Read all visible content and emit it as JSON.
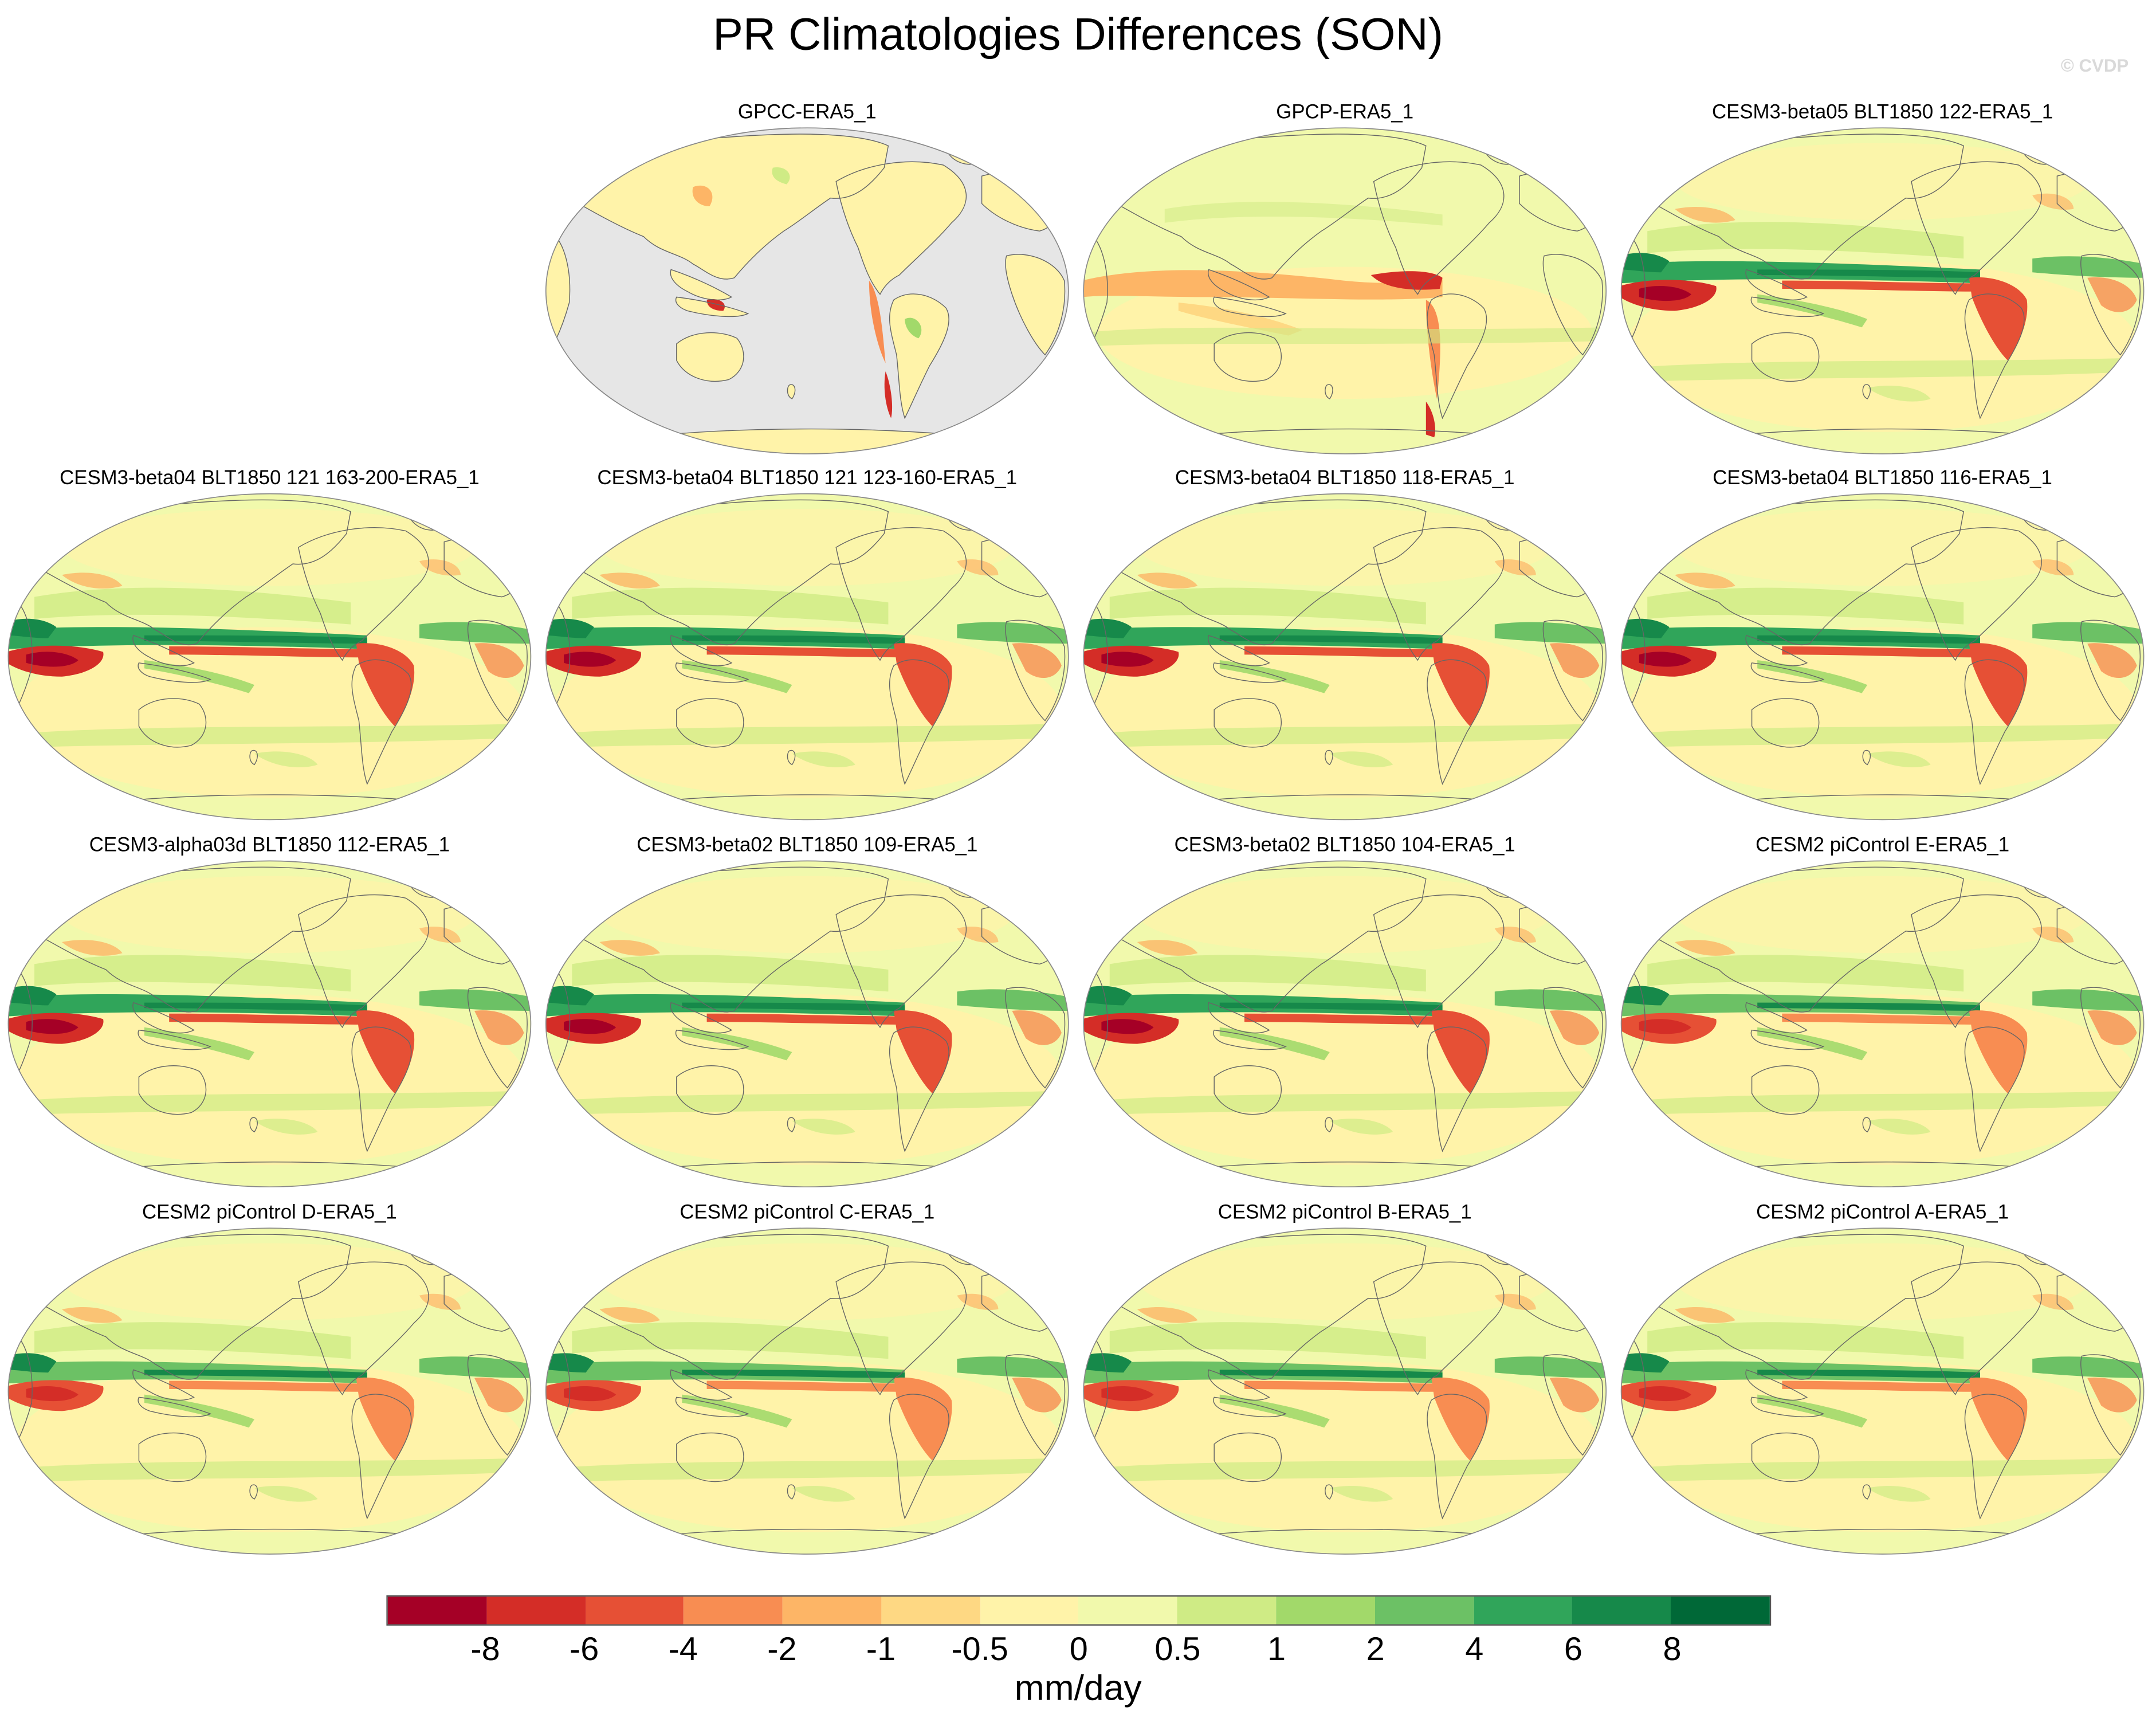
{
  "title": "PR Climatologies Differences (SON)",
  "watermark": "© CVDP",
  "units": "mm/day",
  "colorbar": {
    "ticks": [
      "-8",
      "-6",
      "-4",
      "-2",
      "-1",
      "-0.5",
      "0",
      "0.5",
      "1",
      "2",
      "4",
      "6",
      "8"
    ],
    "colors": [
      "#a50026",
      "#d42d27",
      "#e65035",
      "#f88d52",
      "#fdb566",
      "#fed883",
      "#fff3a9",
      "#f1f9ac",
      "#cfeb85",
      "#a2d96a",
      "#6cc165",
      "#30a55a",
      "#16894a",
      "#006837"
    ]
  },
  "panels": [
    {
      "title": "GPCC-ERA5_1",
      "style": "land-only"
    },
    {
      "title": "GPCP-ERA5_1",
      "style": "obs"
    },
    {
      "title": "CESM3-beta05 BLT1850 122-ERA5_1",
      "style": "model-strong"
    },
    {
      "title": "CESM3-beta04 BLT1850 121 163-200-ERA5_1",
      "style": "model-strong"
    },
    {
      "title": "CESM3-beta04 BLT1850 121 123-160-ERA5_1",
      "style": "model-strong"
    },
    {
      "title": "CESM3-beta04 BLT1850 118-ERA5_1",
      "style": "model-strong"
    },
    {
      "title": "CESM3-beta04 BLT1850 116-ERA5_1",
      "style": "model-strong"
    },
    {
      "title": "CESM3-alpha03d BLT1850 112-ERA5_1",
      "style": "model-strong"
    },
    {
      "title": "CESM3-beta02 BLT1850 109-ERA5_1",
      "style": "model-strong"
    },
    {
      "title": "CESM3-beta02 BLT1850 104-ERA5_1",
      "style": "model-strong"
    },
    {
      "title": "CESM2 piControl E-ERA5_1",
      "style": "model-mild"
    },
    {
      "title": "CESM2 piControl D-ERA5_1",
      "style": "model-mild"
    },
    {
      "title": "CESM2 piControl C-ERA5_1",
      "style": "model-mild"
    },
    {
      "title": "CESM2 piControl B-ERA5_1",
      "style": "model-mild"
    },
    {
      "title": "CESM2 piControl A-ERA5_1",
      "style": "model-mild"
    }
  ]
}
